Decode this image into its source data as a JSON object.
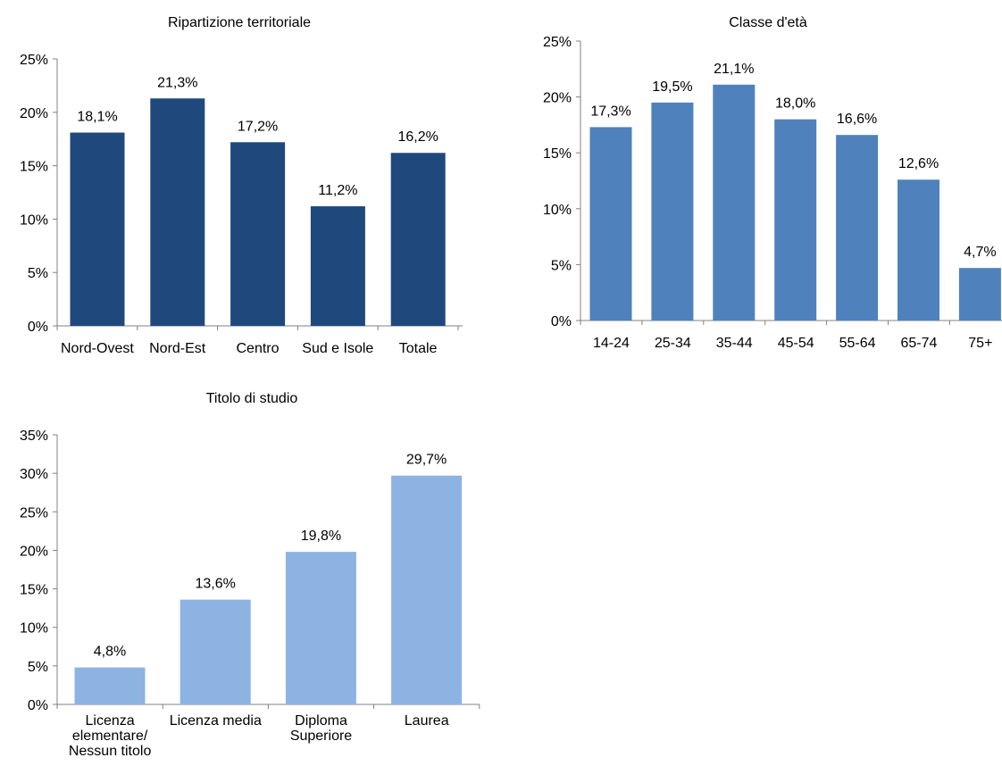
{
  "chart_data": [
    {
      "type": "bar",
      "title": "Ripartizione territoriale",
      "categories": [
        "Nord-Ovest",
        "Nord-Est",
        "Centro",
        "Sud e Isole",
        "Totale"
      ],
      "values": [
        18.1,
        21.3,
        17.2,
        11.2,
        16.2
      ],
      "data_labels": [
        "18,1%",
        "21,3%",
        "17,2%",
        "11,2%",
        "16,2%"
      ],
      "ylim": [
        0,
        25
      ],
      "yticks": [
        "0%",
        "5%",
        "10%",
        "15%",
        "20%",
        "25%"
      ],
      "grid": false,
      "color": "#1F497D"
    },
    {
      "type": "bar",
      "title": "Classe d'età",
      "categories": [
        "14-24",
        "25-34",
        "35-44",
        "45-54",
        "55-64",
        "65-74",
        "75+"
      ],
      "values": [
        17.3,
        19.5,
        21.1,
        18.0,
        16.6,
        12.6,
        4.7
      ],
      "data_labels": [
        "17,3%",
        "19,5%",
        "21,1%",
        "18,0%",
        "16,6%",
        "12,6%",
        "4,7%"
      ],
      "ylim": [
        0,
        25
      ],
      "yticks": [
        "0%",
        "5%",
        "10%",
        "15%",
        "20%",
        "25%"
      ],
      "grid": false,
      "color": "#4F81BD"
    },
    {
      "type": "bar",
      "title": "Titolo di studio",
      "categories": [
        [
          "Licenza",
          "elementare/",
          "Nessun titolo"
        ],
        [
          "Licenza media"
        ],
        [
          "Diploma",
          "Superiore"
        ],
        [
          "Laurea"
        ]
      ],
      "values": [
        4.8,
        13.6,
        19.8,
        29.7
      ],
      "data_labels": [
        "4,8%",
        "13,6%",
        "19,8%",
        "29,7%"
      ],
      "ylim": [
        0,
        35
      ],
      "yticks": [
        "0%",
        "5%",
        "10%",
        "15%",
        "20%",
        "25%",
        "30%",
        "35%"
      ],
      "grid": false,
      "color": "#8DB3E2"
    }
  ]
}
